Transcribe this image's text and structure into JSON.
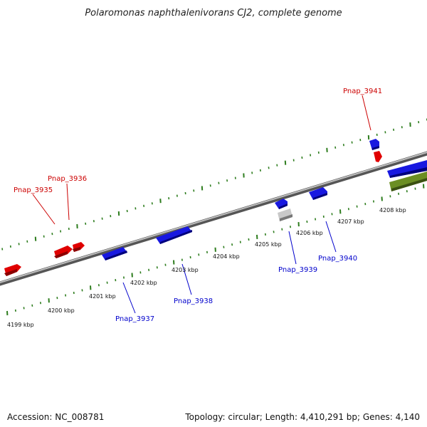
{
  "title": "Polaromonas naphthalenivorans CJ2, complete genome",
  "footer": {
    "accession": "Accession: NC_008781",
    "summary": "Topology: circular; Length: 4,410,291 bp; Genes: 4,140"
  },
  "colors": {
    "backbone": "#888888",
    "ticks": "#2e7d1e",
    "forward_gene": "#e00000",
    "reverse_gene": "#1818e0",
    "pseudo_gene": "#bbbbbb",
    "rna_feature": "#6b8e23",
    "forward_label": "#cc0000",
    "reverse_label": "#0000cc"
  },
  "kbp_labels": [
    "4199 kbp",
    "4200 kbp",
    "4201 kbp",
    "4202 kbp",
    "4203 kbp",
    "4204 kbp",
    "4205 kbp",
    "4206 kbp",
    "4207 kbp",
    "4208 kbp"
  ],
  "labeled_genes": [
    {
      "name": "Pnap_3935",
      "strand": "forward"
    },
    {
      "name": "Pnap_3936",
      "strand": "forward"
    },
    {
      "name": "Pnap_3941",
      "strand": "forward"
    },
    {
      "name": "Pnap_3937",
      "strand": "reverse"
    },
    {
      "name": "Pnap_3938",
      "strand": "reverse"
    },
    {
      "name": "Pnap_3939",
      "strand": "reverse"
    },
    {
      "name": "Pnap_3940",
      "strand": "reverse"
    }
  ]
}
